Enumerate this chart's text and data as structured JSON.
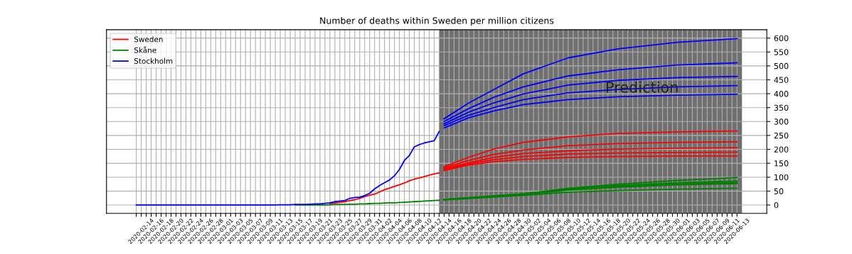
{
  "chart_data": {
    "type": "line",
    "title": "Number of deaths within Sweden per million citizens",
    "x": [
      "2020-02-13",
      "2020-02-14",
      "2020-02-15",
      "2020-02-16",
      "2020-02-17",
      "2020-02-18",
      "2020-02-19",
      "2020-02-20",
      "2020-02-21",
      "2020-02-22",
      "2020-02-23",
      "2020-02-24",
      "2020-02-25",
      "2020-02-26",
      "2020-02-27",
      "2020-02-28",
      "2020-02-29",
      "2020-03-01",
      "2020-03-02",
      "2020-03-03",
      "2020-03-04",
      "2020-03-05",
      "2020-03-06",
      "2020-03-07",
      "2020-03-08",
      "2020-03-09",
      "2020-03-10",
      "2020-03-11",
      "2020-03-12",
      "2020-03-13",
      "2020-03-14",
      "2020-03-15",
      "2020-03-16",
      "2020-03-17",
      "2020-03-18",
      "2020-03-19",
      "2020-03-20",
      "2020-03-21",
      "2020-03-22",
      "2020-03-23",
      "2020-03-24",
      "2020-03-25",
      "2020-03-26",
      "2020-03-27",
      "2020-03-28",
      "2020-03-29",
      "2020-03-30",
      "2020-03-31",
      "2020-04-01",
      "2020-04-02",
      "2020-04-03",
      "2020-04-04",
      "2020-04-05",
      "2020-04-06",
      "2020-04-07",
      "2020-04-08",
      "2020-04-09",
      "2020-04-10",
      "2020-04-11",
      "2020-04-12",
      "2020-04-13",
      "2020-04-14"
    ],
    "series": [
      {
        "name": "Sweden",
        "color": "#ff0000",
        "values": [
          null,
          null,
          null,
          null,
          null,
          null,
          null,
          null,
          null,
          null,
          null,
          null,
          null,
          null,
          null,
          null,
          null,
          null,
          null,
          null,
          null,
          null,
          null,
          null,
          null,
          null,
          null,
          null,
          null,
          null,
          null,
          null,
          null,
          null,
          null,
          null,
          null,
          null,
          null,
          5,
          7,
          10,
          12,
          16,
          19,
          24,
          30,
          35,
          39,
          47,
          55,
          61,
          67,
          73,
          79,
          87,
          93,
          97,
          102,
          107,
          112,
          116
        ]
      },
      {
        "name": "Skåne",
        "color": "#008000",
        "values": [
          null,
          null,
          null,
          null,
          null,
          null,
          null,
          null,
          null,
          null,
          null,
          null,
          null,
          null,
          null,
          null,
          null,
          null,
          null,
          null,
          null,
          null,
          null,
          null,
          null,
          null,
          null,
          null,
          null,
          null,
          null,
          null,
          0,
          0,
          0,
          0,
          0,
          0,
          0,
          1,
          2,
          2,
          2,
          3,
          3,
          4,
          4,
          5,
          6,
          6,
          7,
          8,
          8,
          9,
          10,
          11,
          12,
          13,
          14,
          15,
          16,
          17
        ]
      },
      {
        "name": "Stockholm",
        "color": "#0000ff",
        "values": [
          0,
          0,
          0,
          0,
          0,
          0,
          0,
          0,
          0,
          0,
          0,
          0,
          0,
          0,
          0,
          0,
          0,
          0,
          0,
          0,
          0,
          0,
          0,
          0,
          0,
          0,
          0,
          0,
          0,
          1,
          1,
          1,
          2,
          2,
          2,
          3,
          4,
          4,
          6,
          8,
          12,
          14,
          16,
          24,
          27,
          28,
          34,
          42,
          58,
          70,
          80,
          90,
          105,
          128,
          160,
          178,
          209,
          217,
          223,
          227,
          231,
          264
        ]
      },
      {
        "color": "#0000ff",
        "x": [
          "2020-04-15",
          "2020-04-20",
          "2020-04-25",
          "2020-05-01",
          "2020-05-10",
          "2020-05-20",
          "2020-06-01",
          "2020-06-13"
        ],
        "values": [
          310,
          367,
          415,
          472,
          529,
          561,
          585,
          598
        ]
      },
      {
        "color": "#0000ff",
        "x": [
          "2020-04-15",
          "2020-04-20",
          "2020-04-25",
          "2020-05-01",
          "2020-05-10",
          "2020-05-20",
          "2020-06-01",
          "2020-06-13"
        ],
        "values": [
          300,
          347,
          387,
          425,
          464,
          486,
          503,
          511
        ]
      },
      {
        "color": "#0000ff",
        "x": [
          "2020-04-15",
          "2020-04-20",
          "2020-04-25",
          "2020-05-01",
          "2020-05-10",
          "2020-05-20",
          "2020-06-01",
          "2020-06-13"
        ],
        "values": [
          292,
          334,
          367,
          399,
          431,
          448,
          458,
          462
        ]
      },
      {
        "color": "#0000ff",
        "x": [
          "2020-04-15",
          "2020-04-20",
          "2020-04-25",
          "2020-05-01",
          "2020-05-10",
          "2020-05-20",
          "2020-06-01",
          "2020-06-13"
        ],
        "values": [
          285,
          323,
          350,
          379,
          403,
          415,
          425,
          429
        ]
      },
      {
        "color": "#0000ff",
        "x": [
          "2020-04-15",
          "2020-04-20",
          "2020-04-25",
          "2020-05-01",
          "2020-05-10",
          "2020-05-20",
          "2020-06-01",
          "2020-06-13"
        ],
        "values": [
          277,
          314,
          338,
          361,
          379,
          389,
          395,
          398
        ]
      },
      {
        "color": "#ff0000",
        "x": [
          "2020-04-15",
          "2020-04-20",
          "2020-04-25",
          "2020-05-01",
          "2020-05-10",
          "2020-05-20",
          "2020-06-01",
          "2020-06-13"
        ],
        "values": [
          138,
          172,
          201,
          225,
          245,
          257,
          263,
          266
        ]
      },
      {
        "color": "#ff0000",
        "x": [
          "2020-04-15",
          "2020-04-20",
          "2020-04-25",
          "2020-05-01",
          "2020-05-10",
          "2020-05-20",
          "2020-06-01",
          "2020-06-13"
        ],
        "values": [
          134,
          160,
          182,
          198,
          213,
          221,
          225,
          227
        ]
      },
      {
        "color": "#ff0000",
        "x": [
          "2020-04-15",
          "2020-04-20",
          "2020-04-25",
          "2020-05-01",
          "2020-05-10",
          "2020-05-20",
          "2020-06-01",
          "2020-06-13"
        ],
        "values": [
          130,
          152,
          171,
          185,
          195,
          201,
          204,
          206
        ]
      },
      {
        "color": "#ff0000",
        "x": [
          "2020-04-15",
          "2020-04-20",
          "2020-04-25",
          "2020-05-01",
          "2020-05-10",
          "2020-05-20",
          "2020-06-01",
          "2020-06-13"
        ],
        "values": [
          127,
          148,
          163,
          174,
          183,
          187,
          189,
          190
        ]
      },
      {
        "color": "#ff0000",
        "x": [
          "2020-04-15",
          "2020-04-20",
          "2020-04-25",
          "2020-05-01",
          "2020-05-10",
          "2020-05-20",
          "2020-06-01",
          "2020-06-13"
        ],
        "values": [
          124,
          144,
          156,
          164,
          171,
          174,
          176,
          176
        ]
      },
      {
        "color": "#008000",
        "x": [
          "2020-04-15",
          "2020-05-01",
          "2020-05-10",
          "2020-05-20",
          "2020-06-01",
          "2020-06-13"
        ],
        "values": [
          20,
          40,
          60,
          75,
          88,
          99
        ]
      },
      {
        "color": "#008000",
        "x": [
          "2020-04-15",
          "2020-05-01",
          "2020-05-10",
          "2020-05-20",
          "2020-06-01",
          "2020-06-13"
        ],
        "values": [
          20,
          40,
          58,
          70,
          80,
          86
        ]
      },
      {
        "color": "#008000",
        "x": [
          "2020-04-15",
          "2020-05-01",
          "2020-05-10",
          "2020-05-20",
          "2020-06-01",
          "2020-06-13"
        ],
        "values": [
          19,
          39,
          56,
          67,
          76,
          81
        ]
      },
      {
        "color": "#008000",
        "x": [
          "2020-04-15",
          "2020-05-01",
          "2020-05-10",
          "2020-05-20",
          "2020-06-01",
          "2020-06-13"
        ],
        "values": [
          19,
          38,
          54,
          64,
          72,
          77
        ]
      },
      {
        "color": "#008000",
        "x": [
          "2020-04-15",
          "2020-05-01",
          "2020-05-10",
          "2020-05-20",
          "2020-06-01",
          "2020-06-13"
        ],
        "values": [
          18,
          35,
          46,
          52,
          57,
          60
        ]
      }
    ],
    "bands": [
      {
        "axis": "x",
        "from": "2020-04-14",
        "to": "2020-06-14",
        "label": "Prediction",
        "color": "#707070"
      }
    ],
    "xlim": [
      "2020-02-07",
      "2020-06-19"
    ],
    "xticks": [
      {
        "value": "2020-02-13",
        "label": null
      },
      {
        "value": "2020-02-14",
        "label": "2020-02-14"
      },
      {
        "value": "2020-02-15",
        "label": null
      },
      {
        "value": "2020-02-16",
        "label": "2020-02-16"
      },
      {
        "value": "2020-02-17",
        "label": null
      },
      {
        "value": "2020-02-18",
        "label": "2020-02-18"
      },
      {
        "value": "2020-02-19",
        "label": null
      },
      {
        "value": "2020-02-20",
        "label": "2020-02-20"
      },
      {
        "value": "2020-02-21",
        "label": null
      },
      {
        "value": "2020-02-22",
        "label": "2020-02-22"
      },
      {
        "value": "2020-02-23",
        "label": null
      },
      {
        "value": "2020-02-24",
        "label": "2020-02-24"
      },
      {
        "value": "2020-02-25",
        "label": null
      },
      {
        "value": "2020-02-26",
        "label": "2020-02-26"
      },
      {
        "value": "2020-02-27",
        "label": null
      },
      {
        "value": "2020-02-28",
        "label": "2020-02-28"
      },
      {
        "value": "2020-02-29",
        "label": null
      },
      {
        "value": "2020-03-01",
        "label": "2020-03-01"
      },
      {
        "value": "2020-03-02",
        "label": null
      },
      {
        "value": "2020-03-03",
        "label": "2020-03-03"
      },
      {
        "value": "2020-03-04",
        "label": null
      },
      {
        "value": "2020-03-05",
        "label": "2020-03-05"
      },
      {
        "value": "2020-03-06",
        "label": null
      },
      {
        "value": "2020-03-07",
        "label": "2020-03-07"
      },
      {
        "value": "2020-03-08",
        "label": null
      },
      {
        "value": "2020-03-09",
        "label": "2020-03-09"
      },
      {
        "value": "2020-03-10",
        "label": null
      },
      {
        "value": "2020-03-11",
        "label": "2020-03-11"
      },
      {
        "value": "2020-03-12",
        "label": null
      },
      {
        "value": "2020-03-13",
        "label": "2020-03-13"
      },
      {
        "value": "2020-03-14",
        "label": null
      },
      {
        "value": "2020-03-15",
        "label": "2020-03-15"
      },
      {
        "value": "2020-03-16",
        "label": null
      },
      {
        "value": "2020-03-17",
        "label": "2020-03-17"
      },
      {
        "value": "2020-03-18",
        "label": null
      },
      {
        "value": "2020-03-19",
        "label": "2020-03-19"
      },
      {
        "value": "2020-03-20",
        "label": null
      },
      {
        "value": "2020-03-21",
        "label": "2020-03-21"
      },
      {
        "value": "2020-03-22",
        "label": null
      },
      {
        "value": "2020-03-23",
        "label": "2020-03-23"
      },
      {
        "value": "2020-03-24",
        "label": null
      },
      {
        "value": "2020-03-25",
        "label": "2020-03-25"
      },
      {
        "value": "2020-03-26",
        "label": null
      },
      {
        "value": "2020-03-27",
        "label": "2020-03-27"
      },
      {
        "value": "2020-03-28",
        "label": null
      },
      {
        "value": "2020-03-29",
        "label": "2020-03-29"
      },
      {
        "value": "2020-03-30",
        "label": null
      },
      {
        "value": "2020-03-31",
        "label": "2020-03-31"
      },
      {
        "value": "2020-04-01",
        "label": null
      },
      {
        "value": "2020-04-02",
        "label": "2020-04-02"
      },
      {
        "value": "2020-04-03",
        "label": null
      },
      {
        "value": "2020-04-04",
        "label": "2020-04-04"
      },
      {
        "value": "2020-04-05",
        "label": null
      },
      {
        "value": "2020-04-06",
        "label": "2020-04-06"
      },
      {
        "value": "2020-04-07",
        "label": null
      },
      {
        "value": "2020-04-08",
        "label": "2020-04-08"
      },
      {
        "value": "2020-04-09",
        "label": null
      },
      {
        "value": "2020-04-10",
        "label": "2020-04-10"
      },
      {
        "value": "2020-04-11",
        "label": null
      },
      {
        "value": "2020-04-12",
        "label": "2020-04-12"
      },
      {
        "value": "2020-04-13",
        "label": null
      },
      {
        "value": "2020-04-14",
        "label": "2020-04-14"
      },
      {
        "value": "2020-04-15",
        "label": null
      },
      {
        "value": "2020-04-16",
        "label": "2020-04-16"
      },
      {
        "value": "2020-04-17",
        "label": null
      },
      {
        "value": "2020-04-18",
        "label": "2020-04-18"
      },
      {
        "value": "2020-04-19",
        "label": null
      },
      {
        "value": "2020-04-20",
        "label": "2020-04-20"
      },
      {
        "value": "2020-04-21",
        "label": null
      },
      {
        "value": "2020-04-22",
        "label": "2020-04-22"
      },
      {
        "value": "2020-04-23",
        "label": null
      },
      {
        "value": "2020-04-24",
        "label": "2020-04-24"
      },
      {
        "value": "2020-04-25",
        "label": null
      },
      {
        "value": "2020-04-26",
        "label": "2020-04-26"
      },
      {
        "value": "2020-04-27",
        "label": null
      },
      {
        "value": "2020-04-28",
        "label": "2020-04-28"
      },
      {
        "value": "2020-04-29",
        "label": null
      },
      {
        "value": "2020-04-30",
        "label": "2020-04-30"
      },
      {
        "value": "2020-05-01",
        "label": null
      },
      {
        "value": "2020-05-02",
        "label": "2020-05-02"
      },
      {
        "value": "2020-05-03",
        "label": null
      },
      {
        "value": "2020-05-04",
        "label": "2020-05-04"
      },
      {
        "value": "2020-05-05",
        "label": null
      },
      {
        "value": "2020-05-06",
        "label": "2020-05-06"
      },
      {
        "value": "2020-05-07",
        "label": null
      },
      {
        "value": "2020-05-08",
        "label": "2020-05-08"
      },
      {
        "value": "2020-05-09",
        "label": null
      },
      {
        "value": "2020-05-10",
        "label": "2020-05-10"
      },
      {
        "value": "2020-05-11",
        "label": null
      },
      {
        "value": "2020-05-12",
        "label": "2020-05-12"
      },
      {
        "value": "2020-05-13",
        "label": null
      },
      {
        "value": "2020-05-14",
        "label": "2020-05-14"
      },
      {
        "value": "2020-05-15",
        "label": null
      },
      {
        "value": "2020-05-16",
        "label": "2020-05-16"
      },
      {
        "value": "2020-05-17",
        "label": null
      },
      {
        "value": "2020-05-18",
        "label": "2020-05-18"
      },
      {
        "value": "2020-05-19",
        "label": null
      },
      {
        "value": "2020-05-20",
        "label": "2020-05-20"
      },
      {
        "value": "2020-05-21",
        "label": null
      },
      {
        "value": "2020-05-22",
        "label": "2020-05-22"
      },
      {
        "value": "2020-05-23",
        "label": null
      },
      {
        "value": "2020-05-24",
        "label": "2020-05-24"
      },
      {
        "value": "2020-05-25",
        "label": null
      },
      {
        "value": "2020-05-26",
        "label": "2020-05-26"
      },
      {
        "value": "2020-05-27",
        "label": null
      },
      {
        "value": "2020-05-28",
        "label": "2020-05-28"
      },
      {
        "value": "2020-05-29",
        "label": null
      },
      {
        "value": "2020-05-30",
        "label": "2020-05-30"
      },
      {
        "value": "2020-05-31",
        "label": null
      },
      {
        "value": "2020-06-01",
        "label": "2020-06-01"
      },
      {
        "value": "2020-06-02",
        "label": null
      },
      {
        "value": "2020-06-03",
        "label": "2020-06-03"
      },
      {
        "value": "2020-06-04",
        "label": null
      },
      {
        "value": "2020-06-05",
        "label": "2020-06-05"
      },
      {
        "value": "2020-06-06",
        "label": null
      },
      {
        "value": "2020-06-07",
        "label": "2020-06-07"
      },
      {
        "value": "2020-06-08",
        "label": null
      },
      {
        "value": "2020-06-09",
        "label": "2020-06-09"
      },
      {
        "value": "2020-06-10",
        "label": null
      },
      {
        "value": "2020-06-11",
        "label": "2020-06-11"
      },
      {
        "value": "2020-06-12",
        "label": null
      },
      {
        "value": "2020-06-13",
        "label": "2020-06-13"
      }
    ],
    "ylim": [
      -30,
      630
    ],
    "yticks": [
      0,
      50,
      100,
      150,
      200,
      250,
      300,
      350,
      400,
      450,
      500,
      550,
      600
    ],
    "grid": true,
    "legend": "top left"
  }
}
